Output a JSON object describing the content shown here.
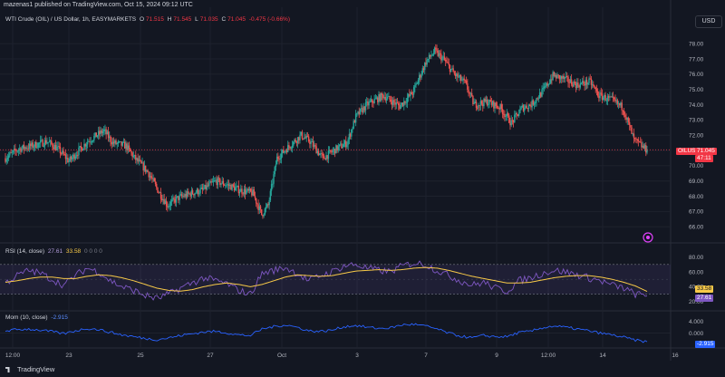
{
  "header": {
    "publish_line": "mazenas1 published on TradingView.com, Oct 15, 2024 09:12 UTC",
    "currency_button": "USD"
  },
  "legend": {
    "symbol": "WTI Crude (OIL) / US Dollar, 1h, EASYMARKETS",
    "o_label": "O",
    "o_value": "71.515",
    "h_label": "H",
    "h_value": "71.545",
    "l_label": "L",
    "l_value": "71.035",
    "c_label": "C",
    "c_value": "71.045",
    "change": "-0.475 (-0.66%)"
  },
  "rsi_legend": {
    "label": "RSI (14, close)",
    "v1": "27.61",
    "v2": "33.58",
    "rest": "0 0 0 0"
  },
  "mom_legend": {
    "label": "Mom (10, close)",
    "v1": "-2.915"
  },
  "price_tag": {
    "symbol": "OILUSD",
    "price": "71.045",
    "countdown": "47:11"
  },
  "rsi_tags": {
    "ma": "33.58",
    "rsi": "27.61"
  },
  "mom_tag": "-2.915",
  "footer": {
    "brand": "TradingView"
  },
  "colors": {
    "bg": "#131722",
    "up": "#26a69a",
    "down": "#ef5350",
    "rsi": "#7e57c2",
    "rsi_ma": "#f7c948",
    "mom": "#2962ff",
    "grid": "#1e222d"
  },
  "chart_data": [
    {
      "type": "candlestick",
      "title": "WTI Crude (OIL) / US Dollar, 1h, EASYMARKETS",
      "x_ticks": [
        "12:00",
        "23",
        "25",
        "27",
        "Oct",
        "3",
        "7",
        "9",
        "12:00",
        "14",
        "16"
      ],
      "y_ticks": [
        66.0,
        67.0,
        68.0,
        69.0,
        70.0,
        71.0,
        72.0,
        73.0,
        74.0,
        75.0,
        76.0,
        77.0,
        78.0
      ],
      "ylim": [
        65.3,
        79.2
      ],
      "last_price": 71.045,
      "anchors": [
        [
          0,
          70.5
        ],
        [
          12,
          71.1
        ],
        [
          24,
          71.3
        ],
        [
          38,
          71.6
        ],
        [
          48,
          71.1
        ],
        [
          58,
          70.3
        ],
        [
          75,
          71.6
        ],
        [
          90,
          72.3
        ],
        [
          98,
          71.5
        ],
        [
          110,
          71.3
        ],
        [
          118,
          70.5
        ],
        [
          130,
          69.6
        ],
        [
          140,
          68.3
        ],
        [
          148,
          67.4
        ],
        [
          158,
          67.9
        ],
        [
          170,
          68.2
        ],
        [
          180,
          68.4
        ],
        [
          192,
          69.0
        ],
        [
          204,
          68.7
        ],
        [
          214,
          68.4
        ],
        [
          226,
          68.2
        ],
        [
          234,
          66.8
        ],
        [
          240,
          67.4
        ],
        [
          248,
          70.5
        ],
        [
          258,
          71.2
        ],
        [
          270,
          72.0
        ],
        [
          278,
          71.6
        ],
        [
          290,
          70.5
        ],
        [
          302,
          71.1
        ],
        [
          312,
          71.5
        ],
        [
          320,
          73.2
        ],
        [
          330,
          74.0
        ],
        [
          345,
          74.6
        ],
        [
          360,
          73.9
        ],
        [
          372,
          74.8
        ],
        [
          384,
          76.8
        ],
        [
          392,
          77.5
        ],
        [
          400,
          77.0
        ],
        [
          410,
          76.0
        ],
        [
          420,
          75.4
        ],
        [
          428,
          74.0
        ],
        [
          440,
          74.2
        ],
        [
          452,
          73.8
        ],
        [
          462,
          72.8
        ],
        [
          472,
          73.8
        ],
        [
          480,
          74.0
        ],
        [
          490,
          74.8
        ],
        [
          500,
          75.9
        ],
        [
          510,
          75.7
        ],
        [
          522,
          75.3
        ],
        [
          534,
          75.5
        ],
        [
          542,
          74.6
        ],
        [
          554,
          74.3
        ],
        [
          564,
          73.8
        ],
        [
          574,
          71.7
        ],
        [
          586,
          71.0
        ]
      ]
    },
    {
      "type": "line",
      "title": "RSI (14, close)",
      "y_ticks": [
        20.0,
        40.0,
        60.0,
        80.0
      ],
      "ylim": [
        16,
        82
      ],
      "bands": [
        30,
        70
      ],
      "series": [
        {
          "values": [
            45,
            55,
            62,
            58,
            50,
            42,
            55,
            65,
            60,
            48,
            40,
            35,
            28,
            24,
            30,
            38,
            45,
            52,
            48,
            44,
            35,
            30,
            58,
            62,
            66,
            58,
            48,
            55,
            60,
            68,
            70,
            65,
            62,
            60,
            68,
            72,
            70,
            62,
            55,
            48,
            42,
            46,
            38,
            34,
            48,
            52,
            58,
            62,
            60,
            56,
            52,
            48,
            42,
            38,
            30,
            27.61
          ]
        },
        {
          "values": [
            46,
            48,
            51,
            53,
            53,
            51,
            51,
            54,
            56,
            55,
            52,
            48,
            43,
            38,
            35,
            34,
            36,
            40,
            43,
            45,
            43,
            40,
            43,
            48,
            53,
            56,
            55,
            54,
            55,
            58,
            61,
            62,
            63,
            62,
            63,
            65,
            66,
            65,
            62,
            58,
            54,
            51,
            48,
            45,
            45,
            46,
            49,
            52,
            54,
            55,
            55,
            53,
            50,
            46,
            41,
            33.58
          ]
        }
      ]
    },
    {
      "type": "line",
      "title": "Mom (10, close)",
      "y_ticks": [
        4.0,
        0.0
      ],
      "ylim": [
        -3.8,
        4.8
      ],
      "series": [
        {
          "values": [
            0.8,
            1.2,
            1.4,
            1.0,
            0.5,
            -0.2,
            0.8,
            1.6,
            1.2,
            0.3,
            -0.6,
            -1.2,
            -1.8,
            -2.2,
            -1.6,
            -0.8,
            -0.2,
            0.4,
            0.6,
            0.1,
            -0.6,
            -0.8,
            1.4,
            2.2,
            2.8,
            2.0,
            0.8,
            0.6,
            1.0,
            2.2,
            2.6,
            2.0,
            1.6,
            1.8,
            2.8,
            3.0,
            2.4,
            1.4,
            0.0,
            -1.0,
            -1.6,
            -0.8,
            -1.2,
            -1.2,
            0.2,
            0.6,
            1.8,
            2.4,
            2.0,
            1.4,
            0.8,
            0.0,
            -0.6,
            -1.4,
            -2.4,
            -2.915
          ]
        }
      ]
    }
  ]
}
